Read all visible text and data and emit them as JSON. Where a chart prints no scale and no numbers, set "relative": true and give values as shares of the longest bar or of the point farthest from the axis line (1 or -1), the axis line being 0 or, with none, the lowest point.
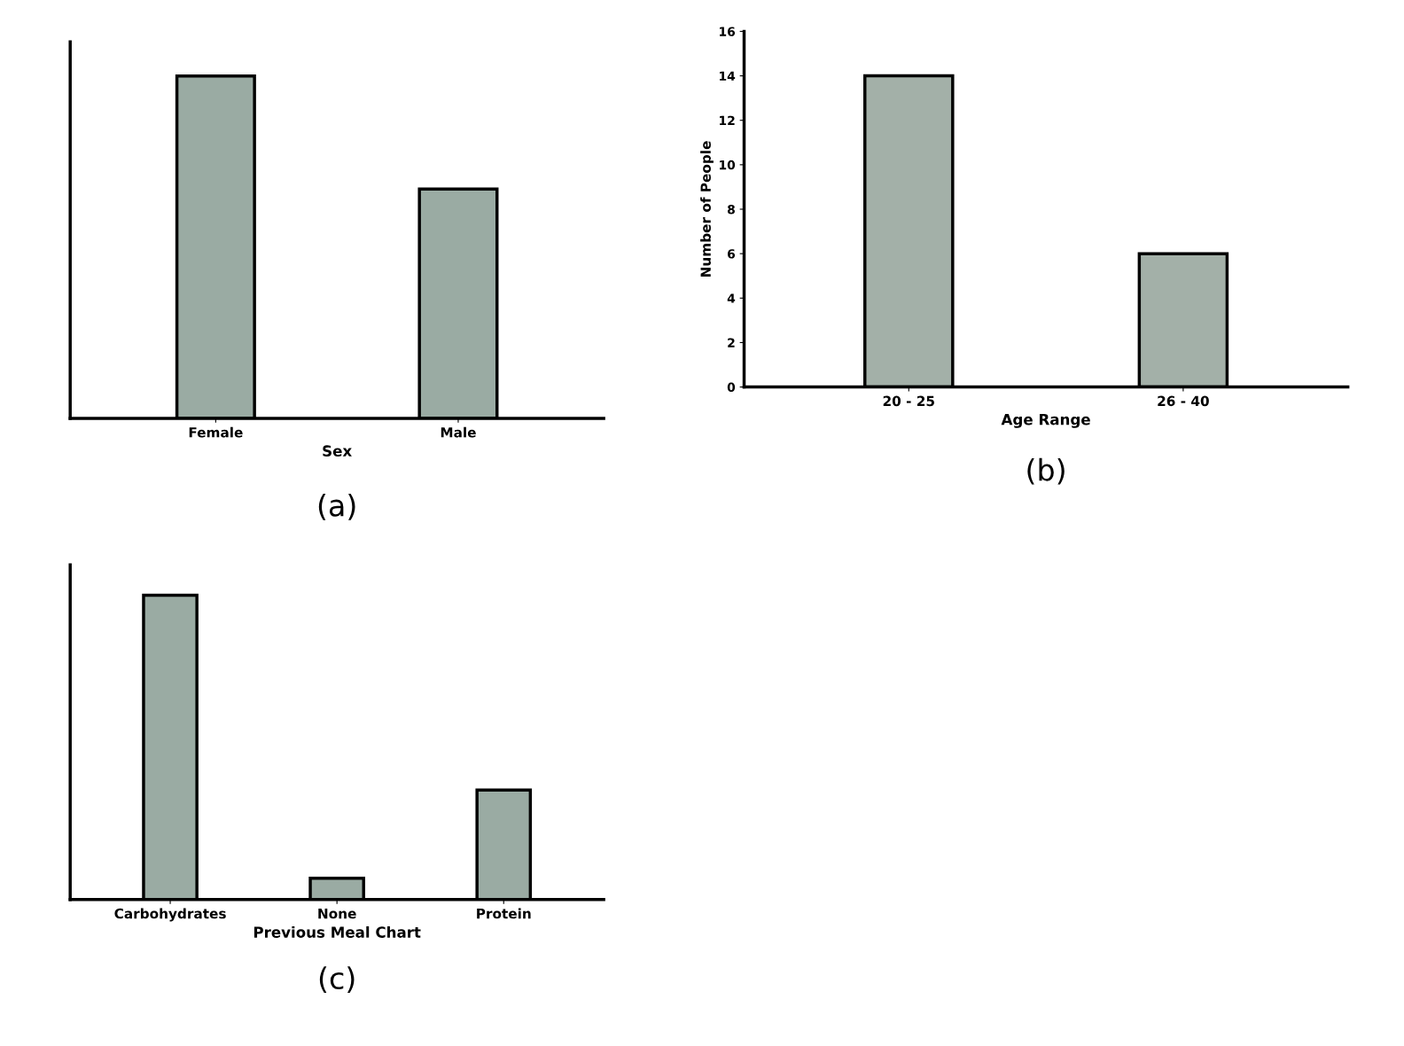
{
  "chart_data": [
    {
      "type": "bar",
      "categories": [
        "Female",
        "Male"
      ],
      "values": [
        1,
        0.67
      ],
      "relative": true,
      "color": "#9aaba3",
      "xlabel": "Sex",
      "annotations": [
        "(a)"
      ]
    },
    {
      "type": "bar",
      "categories": [
        "20 - 25",
        "26 - 40"
      ],
      "values": [
        14,
        6
      ],
      "color": "#a3b0a8",
      "ylim": [
        0,
        16
      ],
      "yticks": [
        0,
        2,
        4,
        6,
        8,
        10,
        12,
        14,
        16
      ],
      "xlabel": "Age Range",
      "ylabel": "Number of People",
      "annotations": [
        "(b)"
      ]
    },
    {
      "type": "bar",
      "categories": [
        "Carbohydrates",
        "None",
        "Protein"
      ],
      "values": [
        1,
        0.07,
        0.36
      ],
      "relative": true,
      "color": "#9aaba3",
      "xlabel": "Previous Meal Chart",
      "annotations": [
        "(c)"
      ]
    }
  ]
}
